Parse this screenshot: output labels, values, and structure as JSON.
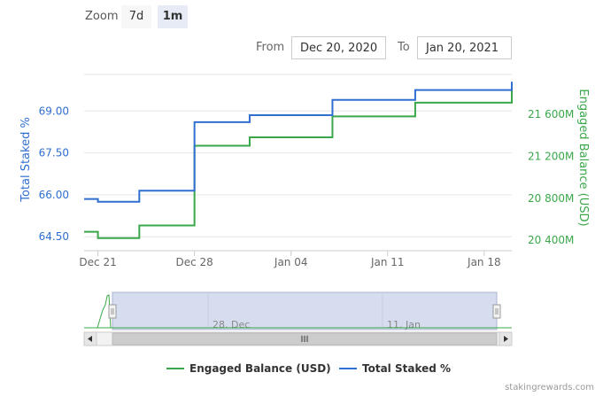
{
  "zoom": {
    "label": "Zoom",
    "buttons": [
      "7d",
      "1m"
    ],
    "active": "1m"
  },
  "range": {
    "from_label": "From",
    "from_value": "Dec 20, 2020",
    "to_label": "To",
    "to_value": "Jan 20, 2021"
  },
  "navigator": {
    "labels": [
      "28. Dec",
      "11. Jan"
    ]
  },
  "credit": "stakingrewards.com",
  "colors": {
    "total_staked": "#2f6fd1",
    "engaged_balance": "#3aa84a",
    "navigator_fill": "#d5ddef"
  },
  "chart_data": {
    "type": "line",
    "x_range": [
      "2020-12-20",
      "2021-01-20"
    ],
    "x_ticks": [
      "Dec 21",
      "Dec 28",
      "Jan 04",
      "Jan 11",
      "Jan 18"
    ],
    "y_left": {
      "label": "Total Staked %",
      "ticks": [
        "64.50",
        "66.00",
        "67.50",
        "69.00"
      ],
      "range": [
        64.0,
        70.5
      ]
    },
    "y_right": {
      "label": "Engaged Balance (USD)",
      "ticks": [
        "20 400M",
        "20 800M",
        "21 200M",
        "21 600M"
      ],
      "range": [
        20300,
        22030
      ]
    },
    "legend_position": "bottom",
    "series": [
      {
        "name": "Engaged Balance (USD)",
        "axis": "right",
        "color": "#3aa84a",
        "points": [
          [
            "2020-12-20",
            20480
          ],
          [
            "2020-12-21",
            20420
          ],
          [
            "2020-12-22",
            20420
          ],
          [
            "2020-12-23",
            20420
          ],
          [
            "2020-12-24",
            20540
          ],
          [
            "2020-12-25",
            20540
          ],
          [
            "2020-12-26",
            20540
          ],
          [
            "2020-12-27",
            20540
          ],
          [
            "2020-12-28",
            21300
          ],
          [
            "2020-12-29",
            21300
          ],
          [
            "2020-12-30",
            21300
          ],
          [
            "2020-12-31",
            21300
          ],
          [
            "2021-01-01",
            21380
          ],
          [
            "2021-01-02",
            21380
          ],
          [
            "2021-01-03",
            21380
          ],
          [
            "2021-01-04",
            21380
          ],
          [
            "2021-01-05",
            21380
          ],
          [
            "2021-01-06",
            21380
          ],
          [
            "2021-01-07",
            21580
          ],
          [
            "2021-01-08",
            21580
          ],
          [
            "2021-01-09",
            21580
          ],
          [
            "2021-01-10",
            21580
          ],
          [
            "2021-01-11",
            21580
          ],
          [
            "2021-01-12",
            21580
          ],
          [
            "2021-01-13",
            21710
          ],
          [
            "2021-01-14",
            21710
          ],
          [
            "2021-01-15",
            21710
          ],
          [
            "2021-01-16",
            21710
          ],
          [
            "2021-01-17",
            21710
          ],
          [
            "2021-01-18",
            21710
          ],
          [
            "2021-01-19",
            21710
          ],
          [
            "2021-01-20",
            21840
          ]
        ]
      },
      {
        "name": "Total Staked %",
        "axis": "left",
        "color": "#2f6fd1",
        "points": [
          [
            "2020-12-20",
            65.85
          ],
          [
            "2020-12-21",
            65.75
          ],
          [
            "2020-12-22",
            65.75
          ],
          [
            "2020-12-23",
            65.75
          ],
          [
            "2020-12-24",
            66.15
          ],
          [
            "2020-12-25",
            66.15
          ],
          [
            "2020-12-26",
            66.15
          ],
          [
            "2020-12-27",
            66.15
          ],
          [
            "2020-12-28",
            68.6
          ],
          [
            "2020-12-29",
            68.6
          ],
          [
            "2020-12-30",
            68.6
          ],
          [
            "2020-12-31",
            68.6
          ],
          [
            "2021-01-01",
            68.85
          ],
          [
            "2021-01-02",
            68.85
          ],
          [
            "2021-01-03",
            68.85
          ],
          [
            "2021-01-04",
            68.85
          ],
          [
            "2021-01-05",
            68.85
          ],
          [
            "2021-01-06",
            68.85
          ],
          [
            "2021-01-07",
            69.4
          ],
          [
            "2021-01-08",
            69.4
          ],
          [
            "2021-01-09",
            69.4
          ],
          [
            "2021-01-10",
            69.4
          ],
          [
            "2021-01-11",
            69.4
          ],
          [
            "2021-01-12",
            69.4
          ],
          [
            "2021-01-13",
            69.75
          ],
          [
            "2021-01-14",
            69.75
          ],
          [
            "2021-01-15",
            69.75
          ],
          [
            "2021-01-16",
            69.75
          ],
          [
            "2021-01-17",
            69.75
          ],
          [
            "2021-01-18",
            69.75
          ],
          [
            "2021-01-19",
            69.75
          ],
          [
            "2021-01-20",
            70.05
          ]
        ]
      }
    ]
  }
}
